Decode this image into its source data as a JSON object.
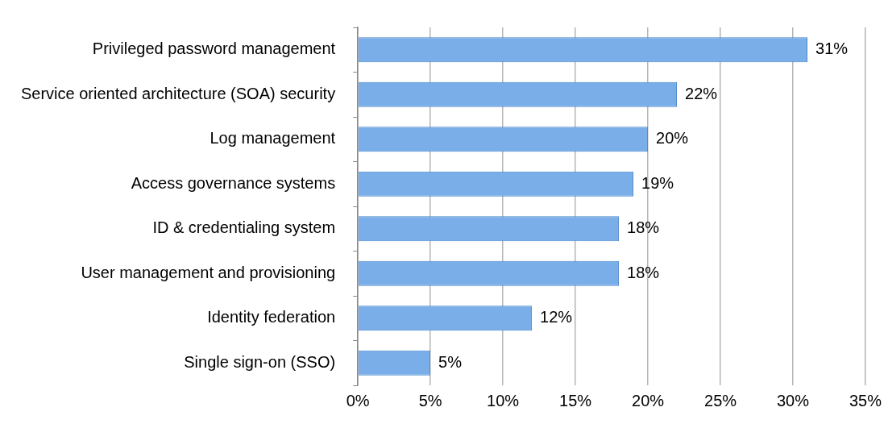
{
  "chart_data": {
    "type": "bar",
    "orientation": "horizontal",
    "categories": [
      "Privileged password management",
      "Service oriented architecture (SOA) security",
      "Log management",
      "Access governance systems",
      "ID & credentialing system",
      "User management and provisioning",
      "Identity federation",
      "Single sign-on (SSO)"
    ],
    "values": [
      31,
      22,
      20,
      19,
      18,
      18,
      12,
      5
    ],
    "value_labels": [
      "31%",
      "22%",
      "20%",
      "19%",
      "18%",
      "18%",
      "12%",
      "5%"
    ],
    "color": "#7aaee8",
    "xlim": [
      0,
      35
    ],
    "xticks": [
      {
        "value": 0,
        "label": "0%"
      },
      {
        "value": 5,
        "label": "5%"
      },
      {
        "value": 10,
        "label": "10%"
      },
      {
        "value": 15,
        "label": "15%"
      },
      {
        "value": 20,
        "label": "20%"
      },
      {
        "value": 25,
        "label": "25%"
      },
      {
        "value": 30,
        "label": "30%"
      },
      {
        "value": 35,
        "label": "35%"
      }
    ],
    "grid": "x",
    "legend": false
  }
}
